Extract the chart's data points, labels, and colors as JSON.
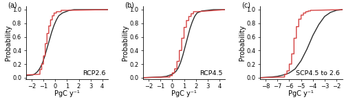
{
  "panels": [
    {
      "label": "a",
      "title": "RCP2.6",
      "xlabel": "PgC y⁻¹",
      "ylabel": "Probability",
      "xlim": [
        -2.5,
        4.5
      ],
      "xticks": [
        -2,
        -1,
        0,
        1,
        2,
        3,
        4
      ],
      "ylim": [
        -0.02,
        1.05
      ],
      "yticks": [
        0.0,
        0.2,
        0.4,
        0.6,
        0.8,
        1.0
      ],
      "black_x": [
        -2.5,
        -1.9,
        -1.7,
        -1.5,
        -1.3,
        -1.1,
        -0.9,
        -0.7,
        -0.5,
        -0.3,
        -0.1,
        0.1,
        0.3,
        0.6,
        0.9,
        1.2,
        1.6,
        2.5,
        4.5
      ],
      "black_y": [
        0.03,
        0.04,
        0.06,
        0.09,
        0.14,
        0.21,
        0.31,
        0.43,
        0.55,
        0.67,
        0.77,
        0.85,
        0.91,
        0.95,
        0.97,
        0.99,
        1.0,
        1.0,
        1.0
      ],
      "red_x": [
        -2.5,
        -1.4,
        -1.2,
        -1.05,
        -0.9,
        -0.75,
        -0.6,
        -0.45,
        -0.3,
        -0.15,
        0.05,
        0.3,
        0.7,
        1.2,
        4.5
      ],
      "red_y": [
        0.04,
        0.05,
        0.12,
        0.2,
        0.32,
        0.5,
        0.65,
        0.76,
        0.85,
        0.91,
        0.95,
        0.97,
        0.99,
        1.0,
        1.0
      ],
      "red_step_x": [
        -1.4,
        -1.3,
        -1.3,
        -1.15,
        -1.15,
        -1.0,
        -1.0,
        -0.85,
        -0.85,
        -0.7,
        -0.7,
        -0.55,
        -0.55,
        -0.4,
        -0.4,
        -0.25,
        -0.25,
        -0.1,
        -0.1,
        0.1,
        0.1,
        0.5,
        0.5,
        1.0
      ],
      "red_step_y": [
        0.05,
        0.05,
        0.12,
        0.12,
        0.2,
        0.2,
        0.32,
        0.32,
        0.5,
        0.5,
        0.65,
        0.65,
        0.76,
        0.76,
        0.85,
        0.85,
        0.91,
        0.91,
        0.95,
        0.95,
        0.97,
        0.97,
        0.99,
        0.99
      ]
    },
    {
      "label": "b",
      "title": "RCP4.5",
      "xlabel": "PgC y⁻¹",
      "ylabel": "Probability",
      "xlim": [
        -2.5,
        4.5
      ],
      "xticks": [
        -2,
        -1,
        0,
        1,
        2,
        3,
        4
      ],
      "ylim": [
        -0.02,
        1.05
      ],
      "yticks": [
        0.0,
        0.2,
        0.4,
        0.6,
        0.8,
        1.0
      ],
      "black_x": [
        -2.5,
        -1.0,
        -0.5,
        0.0,
        0.3,
        0.5,
        0.7,
        0.9,
        1.1,
        1.3,
        1.5,
        1.7,
        1.9,
        2.1,
        2.5,
        3.5,
        4.5
      ],
      "black_y": [
        0.0,
        0.01,
        0.02,
        0.05,
        0.09,
        0.14,
        0.22,
        0.33,
        0.46,
        0.59,
        0.72,
        0.82,
        0.9,
        0.95,
        0.98,
        1.0,
        1.0
      ],
      "red_x": [
        -2.5,
        -0.3,
        -0.1,
        0.1,
        0.3,
        0.5,
        0.7,
        0.9,
        1.1,
        1.3,
        1.5,
        1.7,
        1.9,
        2.2,
        3.0,
        4.5
      ],
      "red_y": [
        0.0,
        0.01,
        0.03,
        0.07,
        0.13,
        0.24,
        0.4,
        0.58,
        0.74,
        0.84,
        0.9,
        0.94,
        0.97,
        0.99,
        1.0,
        1.0
      ],
      "red_step_x": [
        -0.3,
        -0.2,
        -0.2,
        0.0,
        0.0,
        0.2,
        0.2,
        0.4,
        0.4,
        0.6,
        0.6,
        0.8,
        0.8,
        1.0,
        1.0,
        1.2,
        1.2,
        1.4,
        1.4,
        1.6,
        1.6,
        1.8,
        1.8,
        2.1
      ],
      "red_step_y": [
        0.01,
        0.01,
        0.03,
        0.03,
        0.07,
        0.07,
        0.13,
        0.13,
        0.24,
        0.24,
        0.4,
        0.4,
        0.58,
        0.58,
        0.74,
        0.74,
        0.84,
        0.84,
        0.9,
        0.9,
        0.94,
        0.94,
        0.97,
        0.97
      ]
    },
    {
      "label": "c",
      "title": "SCP4.5 to 2.6",
      "xlabel": "PgC y⁻¹",
      "ylabel": "Probability",
      "xlim": [
        -8.5,
        -1.5
      ],
      "xticks": [
        -8,
        -7,
        -6,
        -5,
        -4,
        -3,
        -2
      ],
      "ylim": [
        -0.02,
        1.05
      ],
      "yticks": [
        0.0,
        0.2,
        0.4,
        0.6,
        0.8,
        1.0
      ],
      "black_x": [
        -8.5,
        -7.5,
        -7.0,
        -6.5,
        -6.0,
        -5.5,
        -5.0,
        -4.5,
        -4.0,
        -3.5,
        -3.0,
        -2.5,
        -2.0,
        -1.5
      ],
      "black_y": [
        0.0,
        0.01,
        0.02,
        0.04,
        0.07,
        0.13,
        0.25,
        0.42,
        0.62,
        0.78,
        0.9,
        0.96,
        0.99,
        1.0
      ],
      "red_x": [
        -8.5,
        -6.5,
        -6.3,
        -6.1,
        -5.9,
        -5.7,
        -5.5,
        -5.3,
        -5.1,
        -4.9,
        -4.7,
        -4.5,
        -4.3,
        -4.1,
        -3.9,
        -3.5,
        -2.5,
        -1.5
      ],
      "red_y": [
        0.0,
        0.01,
        0.05,
        0.1,
        0.2,
        0.35,
        0.58,
        0.75,
        0.86,
        0.92,
        0.95,
        0.97,
        0.98,
        0.99,
        1.0,
        1.0,
        1.0,
        1.0
      ],
      "red_step_x": [
        -6.5,
        -6.4,
        -6.4,
        -6.2,
        -6.2,
        -6.0,
        -6.0,
        -5.8,
        -5.8,
        -5.6,
        -5.6,
        -5.4,
        -5.4,
        -5.2,
        -5.2,
        -5.0,
        -5.0,
        -4.8,
        -4.8,
        -4.6,
        -4.6,
        -4.4,
        -4.4,
        -4.2,
        -4.2,
        -4.0
      ],
      "red_step_y": [
        0.01,
        0.01,
        0.05,
        0.05,
        0.1,
        0.1,
        0.2,
        0.2,
        0.35,
        0.35,
        0.58,
        0.58,
        0.75,
        0.75,
        0.86,
        0.86,
        0.92,
        0.92,
        0.95,
        0.95,
        0.97,
        0.97,
        0.98,
        0.98,
        0.99,
        0.99
      ]
    }
  ],
  "black_color": "#2a2a2a",
  "red_color": "#d44040",
  "linewidth": 1.0,
  "tick_fontsize": 6.0,
  "label_fontsize": 7.0,
  "title_fontsize": 6.8
}
